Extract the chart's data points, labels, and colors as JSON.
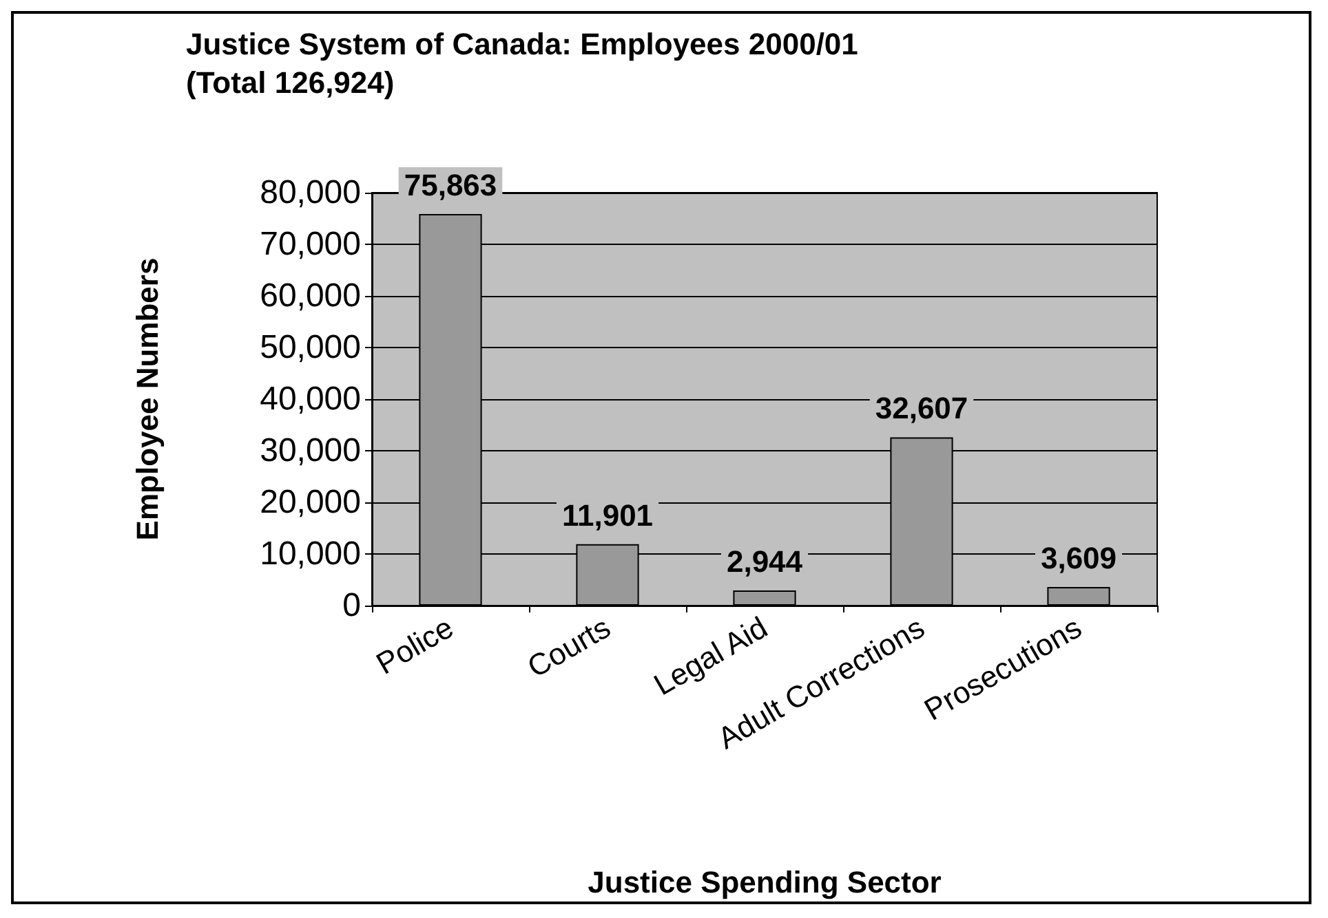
{
  "chart_data": {
    "type": "bar",
    "title": "Justice System of Canada: Employees 2000/01",
    "subtitle": "(Total 126,924)",
    "xlabel": "Justice Spending Sector",
    "ylabel": "Employee Numbers",
    "categories": [
      "Police",
      "Courts",
      "Legal Aid",
      "Adult Corrections",
      "Prosecutions"
    ],
    "values": [
      75863,
      11901,
      2944,
      32607,
      3609
    ],
    "color": "#999999",
    "value_labels": [
      "75,863",
      "11,901",
      "2,944",
      "32,607",
      "3,609"
    ],
    "ylim": [
      0,
      80000
    ],
    "yticks": [
      {
        "value": 0,
        "label": "0"
      },
      {
        "value": 10000,
        "label": "10,000"
      },
      {
        "value": 20000,
        "label": "20,000"
      },
      {
        "value": 30000,
        "label": "30,000"
      },
      {
        "value": 40000,
        "label": "40,000"
      },
      {
        "value": 50000,
        "label": "50,000"
      },
      {
        "value": 60000,
        "label": "60,000"
      },
      {
        "value": 70000,
        "label": "70,000"
      },
      {
        "value": 80000,
        "label": "80,000"
      }
    ],
    "grid": "y"
  }
}
